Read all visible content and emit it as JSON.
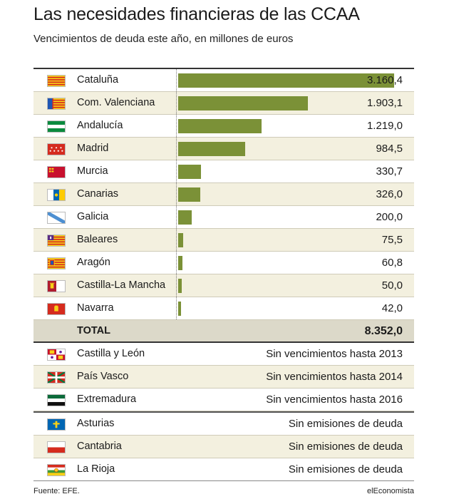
{
  "title": "Las necesidades financieras de las CCAA",
  "subtitle": "Vencimientos de deuda este año, en millones de euros",
  "chart_data": {
    "type": "bar",
    "orientation": "horizontal",
    "title": "Las necesidades financieras de las CCAA",
    "subtitle": "Vencimientos de deuda este año, en millones de euros",
    "categories": [
      "Cataluña",
      "Com. Valenciana",
      "Andalucía",
      "Madrid",
      "Murcia",
      "Canarias",
      "Galicia",
      "Baleares",
      "Aragón",
      "Castilla-La Mancha",
      "Navarra"
    ],
    "values": [
      3160.4,
      1903.1,
      1219.0,
      984.5,
      330.7,
      326.0,
      200.0,
      75.5,
      60.8,
      50.0,
      42.0
    ],
    "value_labels": [
      "3.160,4",
      "1.903,1",
      "1.219,0",
      "984,5",
      "330,7",
      "326,0",
      "200,0",
      "75,5",
      "60,8",
      "50,0",
      "42,0"
    ],
    "flags": [
      "cataluna",
      "valenciana",
      "andalucia",
      "madrid",
      "murcia",
      "canarias",
      "galicia",
      "baleares",
      "aragon",
      "castilla-la-mancha",
      "navarra"
    ],
    "xlim": [
      0,
      3160.4
    ],
    "bar_color": "#7b9137",
    "grid": false,
    "total": {
      "label": "TOTAL",
      "value": 8352.0,
      "value_label": "8.352,0"
    }
  },
  "no_maturity": [
    {
      "name": "Castilla y León",
      "note": "Sin vencimientos hasta 2013",
      "flag": "castilla-leon"
    },
    {
      "name": "País Vasco",
      "note": "Sin vencimientos hasta 2014",
      "flag": "pais-vasco"
    },
    {
      "name": "Extremadura",
      "note": "Sin vencimientos hasta 2016",
      "flag": "extremadura"
    }
  ],
  "no_issuance": [
    {
      "name": "Asturias",
      "note": "Sin emisiones de deuda",
      "flag": "asturias"
    },
    {
      "name": "Cantabria",
      "note": "Sin emisiones de deuda",
      "flag": "cantabria"
    },
    {
      "name": "La Rioja",
      "note": "Sin emisiones de deuda",
      "flag": "la-rioja"
    }
  ],
  "footer": {
    "source": "Fuente: EFE.",
    "brand": "elEconomista"
  }
}
